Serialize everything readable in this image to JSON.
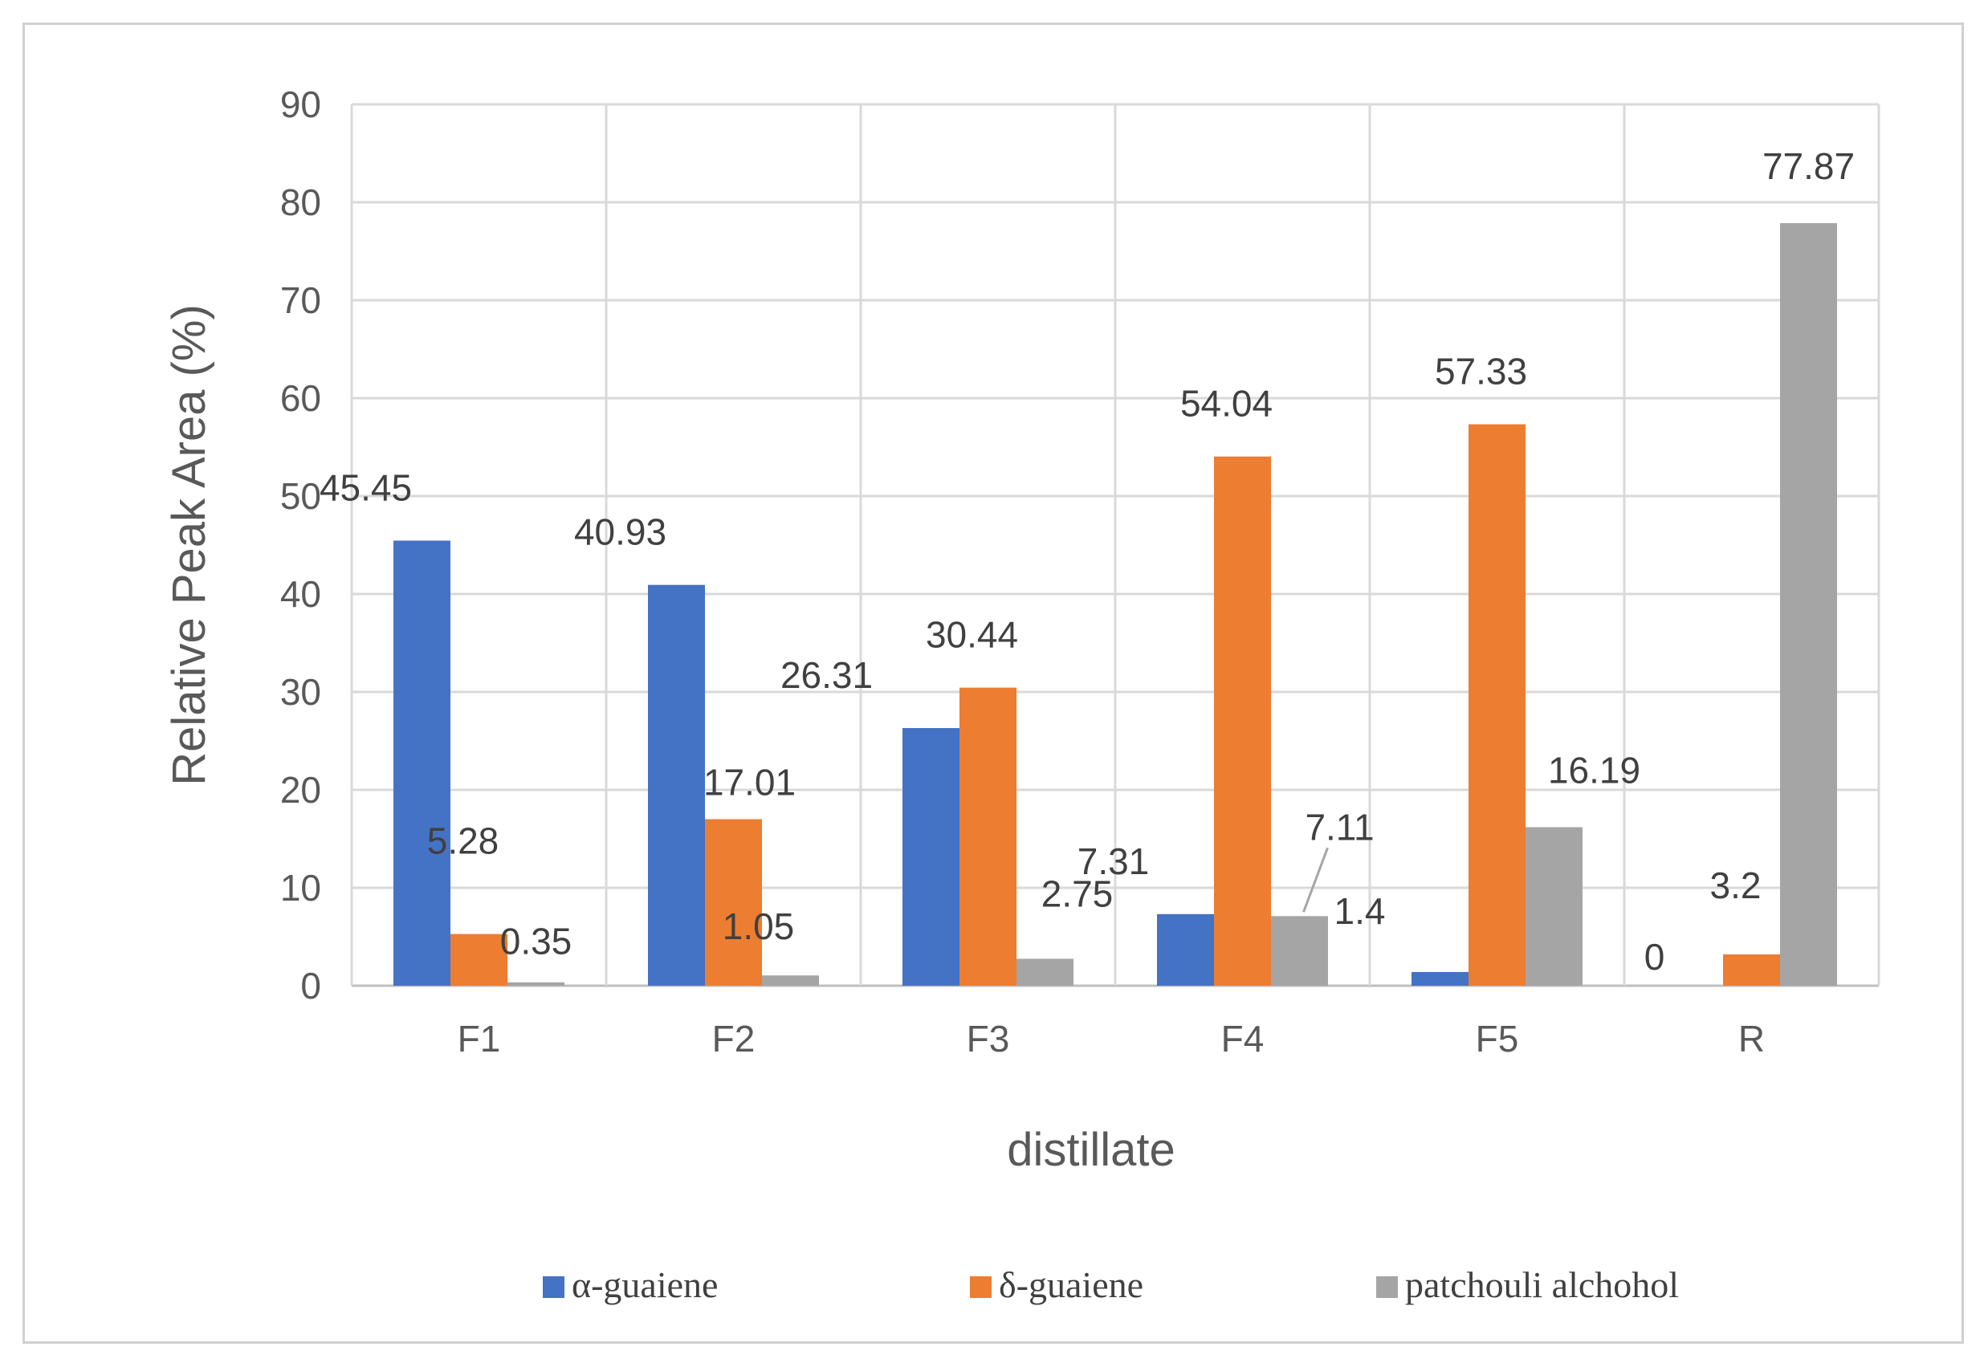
{
  "chart_data": {
    "type": "bar",
    "title": "",
    "xlabel": "distillate",
    "ylabel": "Relative Peak Area (%)",
    "ylim": [
      0,
      90
    ],
    "yticks": [
      0,
      10,
      20,
      30,
      40,
      50,
      60,
      70,
      80,
      90
    ],
    "grid": true,
    "legend_position": "bottom",
    "categories": [
      "F1",
      "F2",
      "F3",
      "F4",
      "F5",
      "R"
    ],
    "series": [
      {
        "name": "α-guaiene",
        "color": "#4472c4",
        "values": [
          45.45,
          40.93,
          26.31,
          7.31,
          1.4,
          0
        ]
      },
      {
        "name": "δ-guaiene",
        "color": "#ed7d31",
        "values": [
          5.28,
          17.01,
          30.44,
          54.04,
          57.33,
          3.2
        ]
      },
      {
        "name": "patchouli alchohol",
        "color": "#a5a5a5",
        "values": [
          0.35,
          1.05,
          2.75,
          7.11,
          16.19,
          77.87
        ]
      }
    ]
  }
}
